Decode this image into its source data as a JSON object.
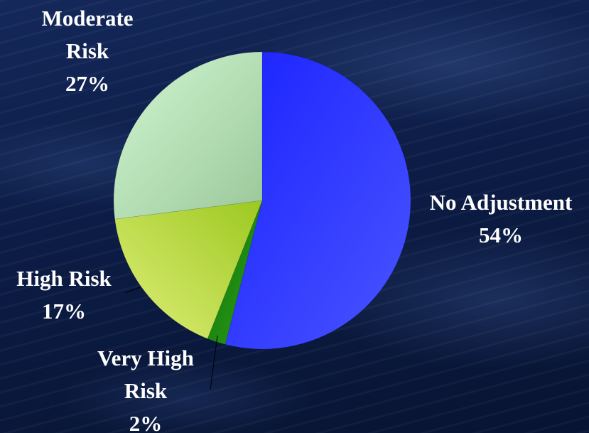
{
  "chart_data": {
    "type": "pie",
    "title": "",
    "slices": [
      {
        "name": "No Adjustment",
        "value": 54,
        "label_lines": [
          "No Adjustment",
          "54%"
        ],
        "color": "#2f3bff"
      },
      {
        "name": "Very High Risk",
        "value": 2,
        "label_lines": [
          "Very High",
          "Risk",
          "2%"
        ],
        "color": "#1f8a10"
      },
      {
        "name": "High Risk",
        "value": 17,
        "label_lines": [
          "High Risk",
          "17%"
        ],
        "color": "#b5d63a"
      },
      {
        "name": "Moderate Risk",
        "value": 27,
        "label_lines": [
          "Moderate",
          "Risk",
          "27%"
        ],
        "color": "#b6dcb6"
      }
    ],
    "start_angle": "12 o'clock",
    "direction": "clockwise",
    "legend": "none"
  }
}
